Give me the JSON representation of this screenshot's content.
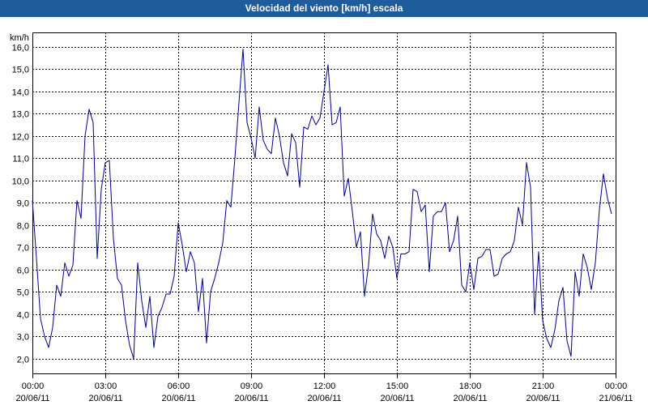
{
  "colors": {
    "title_bar": "#1f5c9b",
    "title_text": "#ffffff",
    "line": "#00008b",
    "grid": "#000000",
    "background": "#ffffff"
  },
  "chart_data": {
    "type": "line",
    "title": "Velocidad del viento [km/h] escala",
    "xlabel": "",
    "ylabel": "km/h",
    "grid": true,
    "grid_style": "dashed",
    "legend": "none",
    "ylim": [
      1.3,
      16.65
    ],
    "xlim": [
      "20/06/11 00:00",
      "21/06/11 00:00"
    ],
    "yticks": [
      {
        "value": 2,
        "label": "2,0"
      },
      {
        "value": 3,
        "label": "3,0"
      },
      {
        "value": 4,
        "label": "4,0"
      },
      {
        "value": 5,
        "label": "5,0"
      },
      {
        "value": 6,
        "label": "6,0"
      },
      {
        "value": 7,
        "label": "7,0"
      },
      {
        "value": 8,
        "label": "8,0"
      },
      {
        "value": 9,
        "label": "9,0"
      },
      {
        "value": 10,
        "label": "10,0"
      },
      {
        "value": 11,
        "label": "11,0"
      },
      {
        "value": 12,
        "label": "12,0"
      },
      {
        "value": 13,
        "label": "13,0"
      },
      {
        "value": 14,
        "label": "14,0"
      },
      {
        "value": 15,
        "label": "15,0"
      },
      {
        "value": 16,
        "label": "16,0"
      }
    ],
    "xticks": [
      {
        "value": "20/06/11 00:00",
        "time": "00:00",
        "date": "20/06/11"
      },
      {
        "value": "20/06/11 03:00",
        "time": "03:00",
        "date": "20/06/11"
      },
      {
        "value": "20/06/11 06:00",
        "time": "06:00",
        "date": "20/06/11"
      },
      {
        "value": "20/06/11 09:00",
        "time": "09:00",
        "date": "20/06/11"
      },
      {
        "value": "20/06/11 12:00",
        "time": "12:00",
        "date": "20/06/11"
      },
      {
        "value": "20/06/11 15:00",
        "time": "15:00",
        "date": "20/06/11"
      },
      {
        "value": "20/06/11 18:00",
        "time": "18:00",
        "date": "20/06/11"
      },
      {
        "value": "20/06/11 21:00",
        "time": "21:00",
        "date": "20/06/11"
      },
      {
        "value": "21/06/11 00:00",
        "time": "00:00",
        "date": "21/06/11"
      }
    ],
    "x": [
      "20/06/11 00:00",
      "20/06/11 00:10",
      "20/06/11 00:20",
      "20/06/11 00:30",
      "20/06/11 00:40",
      "20/06/11 00:50",
      "20/06/11 01:00",
      "20/06/11 01:10",
      "20/06/11 01:20",
      "20/06/11 01:30",
      "20/06/11 01:40",
      "20/06/11 01:50",
      "20/06/11 02:00",
      "20/06/11 02:10",
      "20/06/11 02:20",
      "20/06/11 02:30",
      "20/06/11 02:40",
      "20/06/11 02:50",
      "20/06/11 03:00",
      "20/06/11 03:10",
      "20/06/11 03:20",
      "20/06/11 03:30",
      "20/06/11 03:40",
      "20/06/11 03:50",
      "20/06/11 04:00",
      "20/06/11 04:10",
      "20/06/11 04:20",
      "20/06/11 04:30",
      "20/06/11 04:40",
      "20/06/11 04:50",
      "20/06/11 05:00",
      "20/06/11 05:10",
      "20/06/11 05:20",
      "20/06/11 05:30",
      "20/06/11 05:40",
      "20/06/11 05:50",
      "20/06/11 06:00",
      "20/06/11 06:10",
      "20/06/11 06:20",
      "20/06/11 06:30",
      "20/06/11 06:40",
      "20/06/11 06:50",
      "20/06/11 07:00",
      "20/06/11 07:10",
      "20/06/11 07:20",
      "20/06/11 07:30",
      "20/06/11 07:40",
      "20/06/11 07:50",
      "20/06/11 08:00",
      "20/06/11 08:10",
      "20/06/11 08:20",
      "20/06/11 08:30",
      "20/06/11 08:40",
      "20/06/11 08:50",
      "20/06/11 09:00",
      "20/06/11 09:10",
      "20/06/11 09:20",
      "20/06/11 09:30",
      "20/06/11 09:40",
      "20/06/11 09:50",
      "20/06/11 10:00",
      "20/06/11 10:10",
      "20/06/11 10:20",
      "20/06/11 10:30",
      "20/06/11 10:40",
      "20/06/11 10:50",
      "20/06/11 11:00",
      "20/06/11 11:10",
      "20/06/11 11:20",
      "20/06/11 11:30",
      "20/06/11 11:40",
      "20/06/11 11:50",
      "20/06/11 12:00",
      "20/06/11 12:10",
      "20/06/11 12:20",
      "20/06/11 12:30",
      "20/06/11 12:40",
      "20/06/11 12:50",
      "20/06/11 13:00",
      "20/06/11 13:10",
      "20/06/11 13:20",
      "20/06/11 13:30",
      "20/06/11 13:40",
      "20/06/11 13:50",
      "20/06/11 14:00",
      "20/06/11 14:10",
      "20/06/11 14:20",
      "20/06/11 14:30",
      "20/06/11 14:40",
      "20/06/11 14:50",
      "20/06/11 15:00",
      "20/06/11 15:10",
      "20/06/11 15:20",
      "20/06/11 15:30",
      "20/06/11 15:40",
      "20/06/11 15:50",
      "20/06/11 16:00",
      "20/06/11 16:10",
      "20/06/11 16:20",
      "20/06/11 16:30",
      "20/06/11 16:40",
      "20/06/11 16:50",
      "20/06/11 17:00",
      "20/06/11 17:10",
      "20/06/11 17:20",
      "20/06/11 17:30",
      "20/06/11 17:40",
      "20/06/11 17:50",
      "20/06/11 18:00",
      "20/06/11 18:10",
      "20/06/11 18:20",
      "20/06/11 18:30",
      "20/06/11 18:40",
      "20/06/11 18:50",
      "20/06/11 19:00",
      "20/06/11 19:10",
      "20/06/11 19:20",
      "20/06/11 19:30",
      "20/06/11 19:40",
      "20/06/11 19:50",
      "20/06/11 20:00",
      "20/06/11 20:10",
      "20/06/11 20:20",
      "20/06/11 20:30",
      "20/06/11 20:40",
      "20/06/11 20:50",
      "20/06/11 21:00",
      "20/06/11 21:10",
      "20/06/11 21:20",
      "20/06/11 21:30",
      "20/06/11 21:40",
      "20/06/11 21:50",
      "20/06/11 22:00",
      "20/06/11 22:10",
      "20/06/11 22:20",
      "20/06/11 22:30",
      "20/06/11 22:40",
      "20/06/11 22:50",
      "20/06/11 23:00",
      "20/06/11 23:10",
      "20/06/11 23:20",
      "20/06/11 23:30",
      "20/06/11 23:40",
      "20/06/11 23:50"
    ],
    "series": [
      {
        "color": "#00008b",
        "values": [
          9.1,
          6.5,
          3.8,
          3.0,
          2.5,
          3.4,
          5.3,
          4.8,
          6.3,
          5.7,
          6.2,
          9.1,
          8.3,
          12.0,
          13.2,
          12.6,
          6.5,
          9.6,
          10.8,
          10.9,
          7.4,
          5.6,
          5.3,
          3.7,
          2.6,
          2.0,
          6.3,
          4.6,
          3.4,
          4.8,
          2.5,
          3.9,
          4.3,
          4.9,
          4.9,
          5.7,
          8.1,
          7.1,
          5.9,
          6.8,
          6.3,
          4.1,
          5.6,
          2.7,
          5.0,
          5.6,
          6.3,
          7.2,
          9.1,
          8.8,
          11.0,
          13.5,
          15.9,
          12.6,
          11.9,
          11.0,
          13.3,
          11.8,
          11.4,
          11.2,
          12.8,
          12.0,
          10.8,
          10.2,
          12.1,
          11.7,
          9.7,
          12.4,
          12.3,
          12.9,
          12.5,
          12.8,
          14.0,
          15.2,
          12.5,
          12.6,
          13.3,
          9.3,
          10.1,
          8.6,
          7.0,
          7.7,
          4.8,
          6.2,
          8.5,
          7.6,
          7.3,
          6.5,
          7.5,
          7.0,
          5.6,
          6.7,
          6.7,
          6.8,
          9.6,
          9.5,
          8.6,
          8.9,
          5.9,
          8.4,
          8.6,
          8.6,
          9.0,
          6.8,
          7.3,
          8.4,
          5.3,
          5.0,
          6.3,
          5.1,
          6.5,
          6.6,
          6.9,
          6.9,
          5.7,
          5.8,
          6.5,
          6.7,
          6.8,
          7.3,
          8.8,
          8.0,
          10.8,
          9.7,
          4.0,
          6.8,
          3.7,
          2.9,
          2.5,
          3.3,
          4.6,
          5.2,
          2.8,
          2.1,
          5.9,
          4.8,
          6.7,
          6.1,
          5.1,
          6.3,
          8.7,
          10.3,
          9.2,
          8.5
        ]
      }
    ]
  }
}
